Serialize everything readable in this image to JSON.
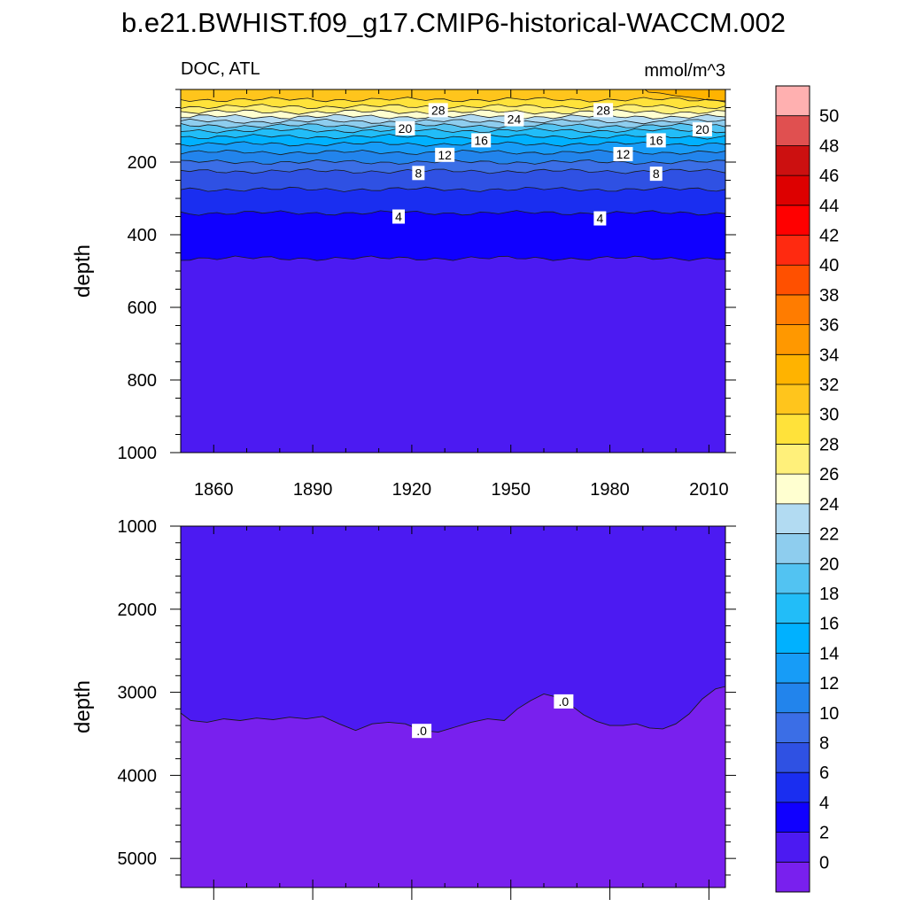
{
  "chart_data": {
    "type": "contour",
    "title": "b.e21.BWHIST.f09_g17.CMIP6-historical-WACCM.002",
    "left_string": "DOC, ATL",
    "right_string": "mmol/m^3",
    "x_ticks": [
      "1860",
      "1890",
      "1920",
      "1950",
      "1980",
      "2010"
    ],
    "x_range": [
      1850,
      2015
    ],
    "panels": [
      {
        "name": "upper",
        "ylabel": "depth",
        "y_range": [
          0,
          1000
        ],
        "y_ticks": [
          "200",
          "400",
          "600",
          "800",
          "1000"
        ],
        "contour_levels": [
          {
            "value": 30,
            "depth": 28
          },
          {
            "value": 28,
            "depth": 47
          },
          {
            "value": 26,
            "depth": 62
          },
          {
            "value": 24,
            "depth": 75
          },
          {
            "value": 22,
            "depth": 88
          },
          {
            "value": 20,
            "depth": 100
          },
          {
            "value": 18,
            "depth": 113
          },
          {
            "value": 16,
            "depth": 130
          },
          {
            "value": 14,
            "depth": 150
          },
          {
            "value": 12,
            "depth": 173
          },
          {
            "value": 10,
            "depth": 200
          },
          {
            "value": 8,
            "depth": 225
          },
          {
            "value": 6,
            "depth": 275
          },
          {
            "value": 4,
            "depth": 340
          },
          {
            "value": 2,
            "depth": 465
          }
        ],
        "line_labels": [
          {
            "text": "28",
            "x": 1928,
            "depth": 57
          },
          {
            "text": "24",
            "x": 1951,
            "depth": 82
          },
          {
            "text": "28",
            "x": 1978,
            "depth": 57
          },
          {
            "text": "20",
            "x": 1918,
            "depth": 107
          },
          {
            "text": "20",
            "x": 2008,
            "depth": 110
          },
          {
            "text": "16",
            "x": 1941,
            "depth": 140
          },
          {
            "text": "16",
            "x": 1994,
            "depth": 140
          },
          {
            "text": "12",
            "x": 1930,
            "depth": 180
          },
          {
            "text": "12",
            "x": 1984,
            "depth": 178
          },
          {
            "text": "8",
            "x": 1922,
            "depth": 230
          },
          {
            "text": "8",
            "x": 1994,
            "depth": 232
          },
          {
            "text": "4",
            "x": 1916,
            "depth": 350
          },
          {
            "text": "4",
            "x": 1977,
            "depth": 355
          }
        ]
      },
      {
        "name": "lower",
        "ylabel": "depth",
        "y_range": [
          1000,
          5350
        ],
        "y_ticks": [
          "1000",
          "2000",
          "3000",
          "4000",
          "5000"
        ],
        "boundary": [
          [
            1850,
            3250
          ],
          [
            1853,
            3340
          ],
          [
            1858,
            3360
          ],
          [
            1863,
            3320
          ],
          [
            1868,
            3340
          ],
          [
            1873,
            3310
          ],
          [
            1878,
            3330
          ],
          [
            1883,
            3300
          ],
          [
            1888,
            3320
          ],
          [
            1893,
            3290
          ],
          [
            1898,
            3380
          ],
          [
            1903,
            3460
          ],
          [
            1908,
            3380
          ],
          [
            1913,
            3360
          ],
          [
            1918,
            3380
          ],
          [
            1923,
            3460
          ],
          [
            1928,
            3480
          ],
          [
            1933,
            3420
          ],
          [
            1938,
            3360
          ],
          [
            1943,
            3320
          ],
          [
            1948,
            3340
          ],
          [
            1952,
            3200
          ],
          [
            1956,
            3100
          ],
          [
            1960,
            3020
          ],
          [
            1964,
            3060
          ],
          [
            1968,
            3150
          ],
          [
            1972,
            3270
          ],
          [
            1976,
            3350
          ],
          [
            1980,
            3400
          ],
          [
            1984,
            3400
          ],
          [
            1988,
            3380
          ],
          [
            1992,
            3430
          ],
          [
            1996,
            3440
          ],
          [
            2000,
            3380
          ],
          [
            2004,
            3260
          ],
          [
            2008,
            3080
          ],
          [
            2012,
            2960
          ],
          [
            2015,
            2930
          ]
        ],
        "line_labels": [
          {
            "text": ".0",
            "x": 1923,
            "depth": 3465
          },
          {
            "text": ".0",
            "x": 1966,
            "depth": 3110
          }
        ]
      }
    ],
    "colorbar": {
      "labels": [
        "50",
        "48",
        "46",
        "44",
        "42",
        "40",
        "38",
        "36",
        "34",
        "32",
        "30",
        "28",
        "26",
        "24",
        "22",
        "20",
        "18",
        "16",
        "14",
        "12",
        "10",
        "8",
        "6",
        "4",
        "2",
        "0"
      ],
      "colors": [
        "#ffb0b0",
        "#e05050",
        "#cc1010",
        "#dd0000",
        "#ff0000",
        "#ff2a10",
        "#ff5000",
        "#ff7c00",
        "#ff9800",
        "#ffb300",
        "#ffc51c",
        "#ffe23a",
        "#fff07a",
        "#ffffd0",
        "#b2dbf2",
        "#8ecdee",
        "#52c3f2",
        "#22bdf8",
        "#00b1ff",
        "#179cf7",
        "#2284ec",
        "#3b6ee6",
        "#2f51e3",
        "#1a2ef0",
        "#1000ff",
        "#4c1af2",
        "#7920ee"
      ]
    }
  }
}
